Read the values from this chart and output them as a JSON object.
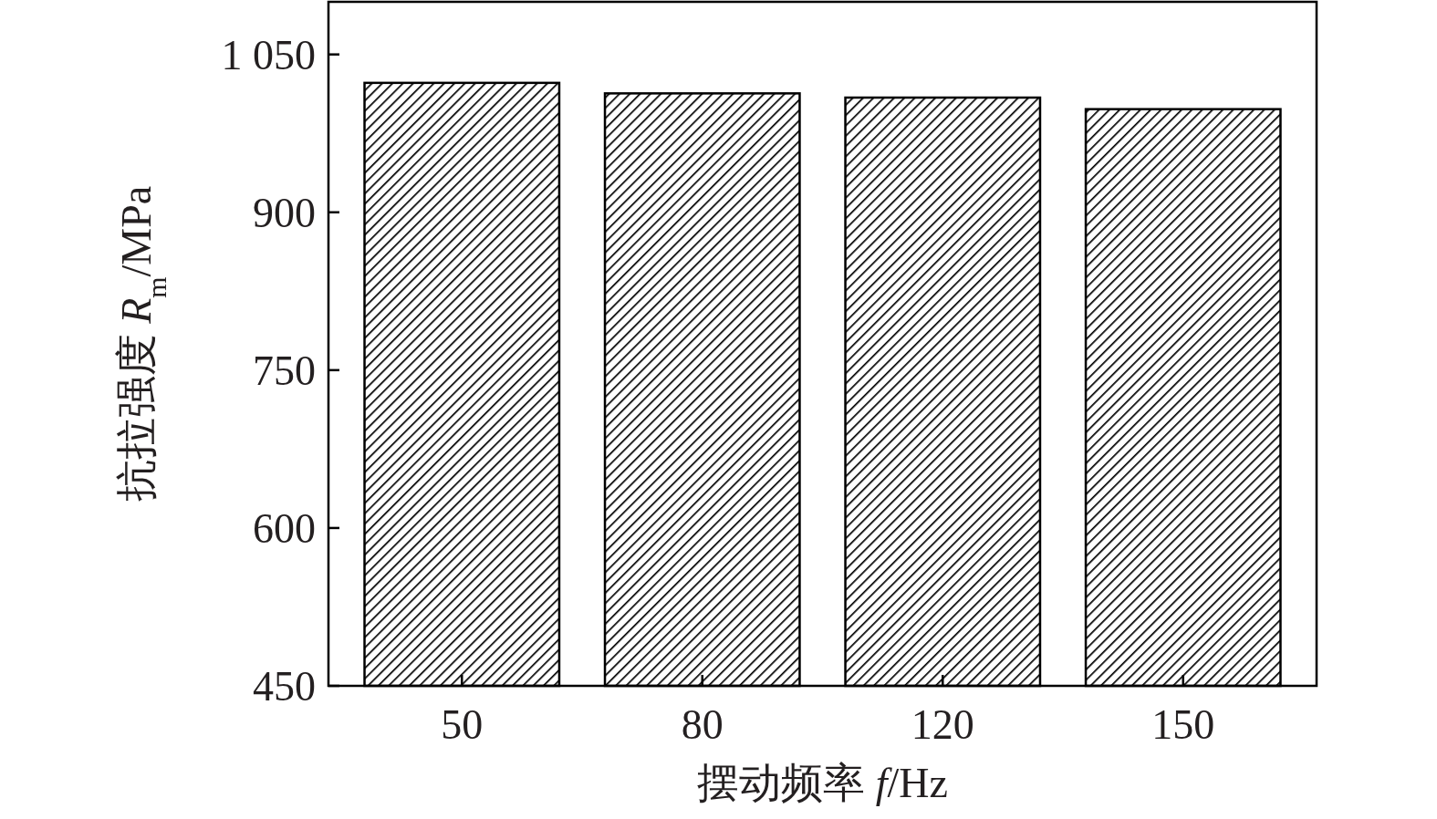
{
  "chart_data": {
    "type": "bar",
    "xlabel": "摆动频率 *f*/Hz",
    "ylabel": "抗拉强度 *R*$_{m}$/MPa",
    "categories": [
      "50",
      "80",
      "120",
      "150"
    ],
    "values": [
      1023,
      1013,
      1009,
      998
    ],
    "color": "#000000",
    "ylim": [
      450,
      1100
    ],
    "yticks": [
      450,
      600,
      750,
      900,
      {
        "value": 1050,
        "label": "1 050"
      }
    ],
    "grid": false
  }
}
